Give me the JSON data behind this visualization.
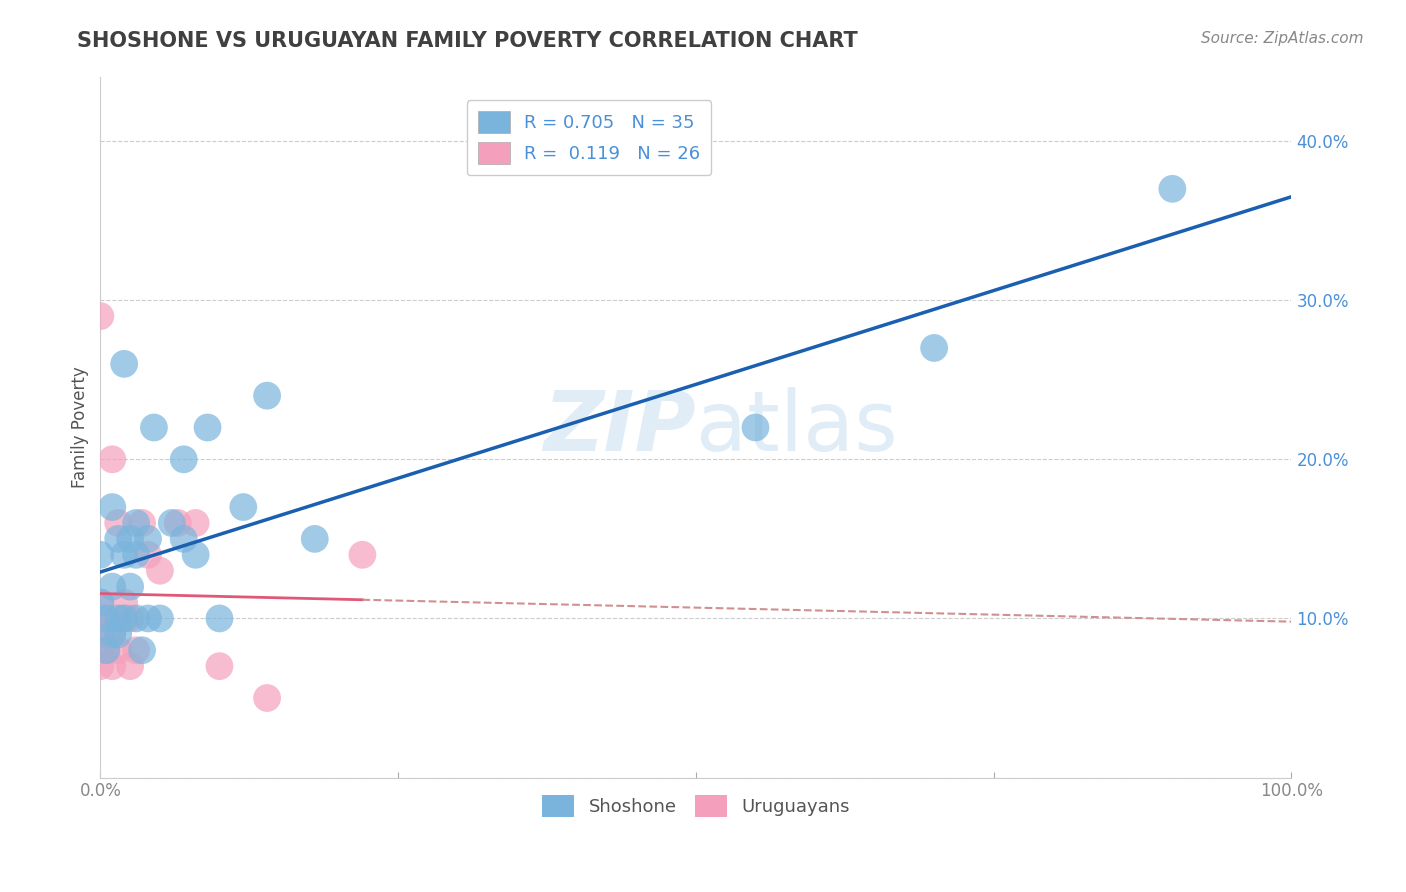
{
  "title": "SHOSHONE VS URUGUAYAN FAMILY POVERTY CORRELATION CHART",
  "source": "Source: ZipAtlas.com",
  "ylabel": "Family Poverty",
  "watermark": "ZIPatlas",
  "xlim": [
    0,
    1
  ],
  "ylim": [
    0.0,
    0.44
  ],
  "xticks": [
    0.0,
    0.25,
    0.5,
    0.75,
    1.0
  ],
  "xtick_labels": [
    "0.0%",
    "",
    "",
    "",
    "100.0%"
  ],
  "yticks": [
    0.0,
    0.1,
    0.2,
    0.3,
    0.4
  ],
  "ytick_labels": [
    "",
    "10.0%",
    "20.0%",
    "30.0%",
    "40.0%"
  ],
  "shoshone_color": "#7ab4dc",
  "uruguayan_color": "#f4a0bc",
  "regression_shoshone_color": "#1a5fb0",
  "regression_uruguayan_solid_color": "#e05878",
  "regression_uruguayan_dash_color": "#d09090",
  "shoshone_x": [
    0.0,
    0.0,
    0.005,
    0.005,
    0.01,
    0.01,
    0.01,
    0.015,
    0.015,
    0.015,
    0.02,
    0.02,
    0.02,
    0.025,
    0.025,
    0.03,
    0.03,
    0.03,
    0.035,
    0.04,
    0.04,
    0.045,
    0.05,
    0.06,
    0.07,
    0.07,
    0.08,
    0.09,
    0.1,
    0.12,
    0.14,
    0.18,
    0.55,
    0.7,
    0.9
  ],
  "shoshone_y": [
    0.11,
    0.14,
    0.08,
    0.1,
    0.09,
    0.12,
    0.17,
    0.09,
    0.1,
    0.15,
    0.1,
    0.14,
    0.26,
    0.12,
    0.15,
    0.1,
    0.14,
    0.16,
    0.08,
    0.1,
    0.15,
    0.22,
    0.1,
    0.16,
    0.15,
    0.2,
    0.14,
    0.22,
    0.1,
    0.17,
    0.24,
    0.15,
    0.22,
    0.27,
    0.37
  ],
  "uruguayan_x": [
    0.0,
    0.0,
    0.0,
    0.0,
    0.0,
    0.0,
    0.005,
    0.005,
    0.01,
    0.01,
    0.01,
    0.015,
    0.015,
    0.02,
    0.02,
    0.025,
    0.025,
    0.03,
    0.035,
    0.04,
    0.05,
    0.065,
    0.08,
    0.1,
    0.14,
    0.22
  ],
  "uruguayan_y": [
    0.07,
    0.08,
    0.09,
    0.1,
    0.11,
    0.29,
    0.08,
    0.1,
    0.07,
    0.09,
    0.2,
    0.08,
    0.16,
    0.1,
    0.11,
    0.07,
    0.1,
    0.08,
    0.16,
    0.14,
    0.13,
    0.16,
    0.16,
    0.07,
    0.05,
    0.14
  ],
  "background_color": "#ffffff",
  "grid_color": "#cccccc",
  "title_color": "#404040",
  "axis_color": "#888888",
  "right_axis_color": "#4a90d9",
  "text_color": "#555555"
}
